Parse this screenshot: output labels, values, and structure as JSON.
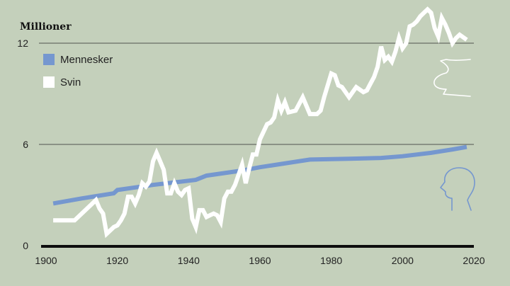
{
  "chart_data": {
    "type": "line",
    "ylabel": "Millioner",
    "xlim": [
      1900,
      2020
    ],
    "ylim": [
      0,
      12
    ],
    "x_ticks": [
      1900,
      1920,
      1940,
      1960,
      1980,
      2000,
      2020
    ],
    "y_ticks": [
      0,
      6,
      12
    ],
    "legend_position": "top-left",
    "series": [
      {
        "name": "Mennesker",
        "color": "#7597cf",
        "icon": "human-head-icon",
        "x": [
          1902,
          1910,
          1919,
          1920,
          1930,
          1942,
          1945,
          1955,
          1960,
          1974,
          1985,
          1994,
          2000,
          2008,
          2014,
          2018
        ],
        "y": [
          2.5,
          2.8,
          3.1,
          3.3,
          3.6,
          3.9,
          4.15,
          4.45,
          4.65,
          5.1,
          5.15,
          5.2,
          5.3,
          5.5,
          5.7,
          5.85
        ]
      },
      {
        "name": "Svin",
        "color": "#ffffff",
        "icon": "pig-icon",
        "x": [
          1902,
          1908,
          1914,
          1915,
          1916,
          1917,
          1918,
          1919,
          1920,
          1921,
          1922,
          1923,
          1924,
          1925,
          1926,
          1927,
          1928,
          1929,
          1930,
          1931,
          1932,
          1933,
          1934,
          1935,
          1936,
          1937,
          1938,
          1939,
          1940,
          1941,
          1942,
          1943,
          1944,
          1945,
          1946,
          1947,
          1948,
          1949,
          1950,
          1951,
          1952,
          1953,
          1954,
          1955,
          1956,
          1957,
          1958,
          1959,
          1960,
          1962,
          1963,
          1964,
          1965,
          1966,
          1967,
          1968,
          1970,
          1972,
          1974,
          1976,
          1977,
          1978,
          1980,
          1981,
          1982,
          1983,
          1985,
          1987,
          1989,
          1990,
          1991,
          1992,
          1993,
          1994,
          1995,
          1996,
          1997,
          1998,
          1999,
          2000,
          2001,
          2002,
          2003,
          2004,
          2005,
          2006,
          2007,
          2008,
          2009,
          2010,
          2011,
          2012,
          2013,
          2014,
          2015,
          2016,
          2018
        ],
        "y": [
          1.5,
          1.5,
          2.7,
          2.2,
          1.9,
          0.7,
          0.9,
          1.1,
          1.2,
          1.5,
          1.9,
          2.9,
          2.9,
          2.5,
          3.0,
          3.7,
          3.5,
          3.8,
          5.0,
          5.5,
          5.0,
          4.5,
          3.1,
          3.1,
          3.7,
          3.2,
          3.0,
          3.3,
          3.4,
          1.6,
          1.1,
          2.1,
          2.1,
          1.7,
          1.8,
          1.9,
          1.8,
          1.4,
          2.8,
          3.2,
          3.2,
          3.6,
          4.2,
          4.8,
          3.7,
          4.6,
          5.4,
          5.4,
          6.3,
          7.2,
          7.3,
          7.6,
          8.6,
          8.0,
          8.5,
          7.9,
          8.0,
          8.8,
          7.8,
          7.8,
          8.0,
          8.8,
          10.2,
          10.1,
          9.5,
          9.4,
          8.8,
          9.4,
          9.1,
          9.2,
          9.6,
          10.0,
          10.6,
          11.8,
          11.0,
          11.2,
          10.9,
          11.5,
          12.3,
          11.7,
          12.0,
          13.0,
          13.1,
          13.3,
          13.6,
          13.8,
          14.0,
          13.8,
          12.9,
          12.4,
          13.5,
          13.1,
          12.6,
          12.0,
          12.3,
          12.5,
          12.2
        ]
      }
    ]
  }
}
